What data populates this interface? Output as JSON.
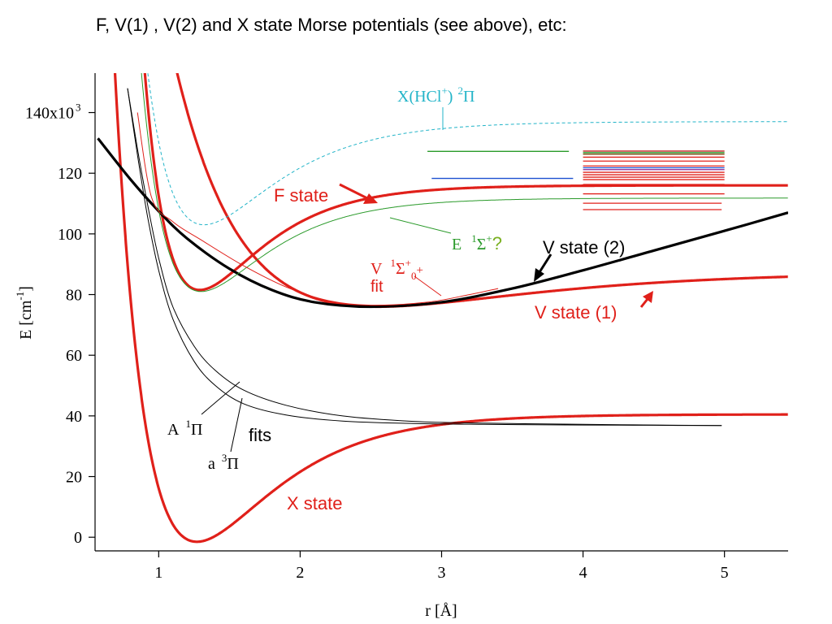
{
  "page_title": "F, V(1) , V(2) and X state Morse potentials (see above), etc:",
  "chart_data": {
    "type": "line",
    "xlabel": "r [Å]",
    "ylabel": "E [cm-1]",
    "xlim": [
      0.55,
      5.45
    ],
    "ylim": [
      -4500,
      153000
    ],
    "x_ticks": [
      "1",
      "2",
      "3",
      "4",
      "5"
    ],
    "y_ticks": [
      "0",
      "20",
      "40",
      "60",
      "80",
      "100",
      "120",
      "140x10"
    ],
    "y_tick_sup": "3",
    "grid": false,
    "series": [
      {
        "id": "X_state",
        "label": "X state",
        "curve": "morse",
        "params": {
          "De": 42000,
          "re": 1.27,
          "a": 1.85,
          "Emin": -1500
        },
        "color": "#e0201a"
      },
      {
        "id": "F_state",
        "label": "F state",
        "curve": "morse",
        "params": {
          "De": 34500,
          "re": 1.29,
          "a": 2.3,
          "Emin": 81500
        },
        "color": "#e0201a"
      },
      {
        "id": "V_state_1",
        "label": "V state (1)",
        "curve": "morse",
        "params": {
          "De": 11500,
          "re": 2.55,
          "a": 0.9,
          "Emin": 76000
        },
        "color": "#e0201a"
      },
      {
        "id": "V_state_2",
        "label": "V state (2)",
        "curve": "points",
        "color": "#000000",
        "points": [
          [
            0.57,
            131500
          ],
          [
            0.8,
            118000
          ],
          [
            1.0,
            107500
          ],
          [
            1.2,
            98500
          ],
          [
            1.5,
            88500
          ],
          [
            1.8,
            81500
          ],
          [
            2.1,
            77500
          ],
          [
            2.5,
            76000
          ],
          [
            3.0,
            77500
          ],
          [
            3.5,
            82000
          ],
          [
            4.0,
            88000
          ],
          [
            4.5,
            94500
          ],
          [
            5.0,
            101000
          ],
          [
            5.45,
            107000
          ]
        ]
      },
      {
        "id": "E_state",
        "label": "E 1Σ+ ?",
        "curve": "morse",
        "params": {
          "De": 30800,
          "re": 1.3,
          "a": 2.2,
          "Emin": 81000
        },
        "color": "#2a9a2a"
      },
      {
        "id": "V_fit",
        "label": "V 1Σ+0+ fit",
        "curve": "points",
        "color": "#e0201a",
        "points": [
          [
            0.85,
            140000
          ],
          [
            0.95,
            112000
          ],
          [
            1.1,
            104000
          ],
          [
            1.3,
            98000
          ],
          [
            1.6,
            89500
          ],
          [
            1.9,
            82500
          ],
          [
            2.2,
            78000
          ],
          [
            2.5,
            76500
          ],
          [
            2.9,
            77500
          ],
          [
            3.2,
            80000
          ],
          [
            3.4,
            82000
          ]
        ]
      },
      {
        "id": "A_1Pi_fit",
        "label": "A 1Π",
        "curve": "points",
        "color": "#000000",
        "points": [
          [
            0.78,
            148000
          ],
          [
            0.85,
            128000
          ],
          [
            0.92,
            110000
          ],
          [
            1.0,
            92000
          ],
          [
            1.1,
            76000
          ],
          [
            1.25,
            63000
          ],
          [
            1.4,
            55000
          ],
          [
            1.6,
            48500
          ],
          [
            1.9,
            43500
          ],
          [
            2.3,
            40000
          ],
          [
            2.8,
            38200
          ],
          [
            3.3,
            37600
          ],
          [
            4.0,
            37200
          ],
          [
            4.5,
            37000
          ],
          [
            4.98,
            36800
          ]
        ]
      },
      {
        "id": "a_3Pi_fit",
        "label": "a 3Π",
        "curve": "points",
        "color": "#000000",
        "points": [
          [
            0.78,
            148000
          ],
          [
            0.85,
            126000
          ],
          [
            0.92,
            106000
          ],
          [
            1.0,
            88000
          ],
          [
            1.1,
            72000
          ],
          [
            1.25,
            58000
          ],
          [
            1.4,
            50000
          ],
          [
            1.6,
            44000
          ],
          [
            1.9,
            40300
          ],
          [
            2.3,
            38300
          ],
          [
            2.8,
            37500
          ],
          [
            3.3,
            37200
          ],
          [
            4.0,
            37000
          ],
          [
            4.5,
            36900
          ],
          [
            4.98,
            36800
          ]
        ]
      },
      {
        "id": "HCl_plus_X",
        "label": "X(HCl+) 2Π",
        "curve": "morse",
        "params": {
          "De": 34000,
          "re": 1.32,
          "a": 2.0,
          "Emin": 103000
        },
        "color": "#22b4c8",
        "dashed": true
      }
    ],
    "levels": [
      {
        "y": 127200,
        "x0": 2.9,
        "x1": 3.9,
        "color": "#2a9a2a"
      },
      {
        "y": 118300,
        "x0": 2.93,
        "x1": 3.93,
        "color": "#1a4fd0"
      },
      {
        "y": 127300,
        "x0": 4.0,
        "x1": 5.0,
        "color": "#c02020"
      },
      {
        "y": 126800,
        "x0": 4.0,
        "x1": 5.0,
        "color": "#2a9a2a"
      },
      {
        "y": 126300,
        "x0": 4.0,
        "x1": 5.0,
        "color": "#7a4a10"
      },
      {
        "y": 125300,
        "x0": 4.0,
        "x1": 5.0,
        "color": "#e0201a"
      },
      {
        "y": 124000,
        "x0": 4.0,
        "x1": 5.0,
        "color": "#e0201a"
      },
      {
        "y": 122400,
        "x0": 4.0,
        "x1": 5.0,
        "color": "#e0201a"
      },
      {
        "y": 121800,
        "x0": 4.0,
        "x1": 5.0,
        "color": "#1a4fd0"
      },
      {
        "y": 121200,
        "x0": 4.0,
        "x1": 5.0,
        "color": "#8a2090"
      },
      {
        "y": 120300,
        "x0": 4.0,
        "x1": 5.0,
        "color": "#e0201a"
      },
      {
        "y": 119500,
        "x0": 4.0,
        "x1": 5.0,
        "color": "#e0201a"
      },
      {
        "y": 118700,
        "x0": 4.0,
        "x1": 5.0,
        "color": "#e0201a"
      },
      {
        "y": 117900,
        "x0": 4.0,
        "x1": 5.0,
        "color": "#e0201a"
      },
      {
        "y": 116300,
        "x0": 4.0,
        "x1": 5.0,
        "color": "#e0201a"
      },
      {
        "y": 113200,
        "x0": 4.0,
        "x1": 5.0,
        "color": "#e0201a"
      },
      {
        "y": 110100,
        "x0": 4.0,
        "x1": 4.98,
        "color": "#e0201a"
      },
      {
        "y": 108000,
        "x0": 4.0,
        "x1": 4.98,
        "color": "#e0201a"
      }
    ],
    "annotations": {
      "f_state": "F state",
      "v_state_2": "V state (2)",
      "v_state_1": "V state (1)",
      "x_state": "X state",
      "e_state_prefix": "E",
      "e_state_sup1": "1",
      "e_state_sigma": "Σ",
      "e_state_sup_plus": "+",
      "e_state_question": "?",
      "v_fit_prefix": "V",
      "v_fit_sup1": "1",
      "v_fit_sigma": "Σ",
      "v_fit_sup_plus": "+",
      "v_fit_sub0": "0",
      "v_fit_plus": "+",
      "v_fit_fit": "fit",
      "hcl_text": "X(HCl",
      "hcl_sup_plus": "+",
      "hcl_close": ")",
      "hcl_sup2": "2",
      "hcl_pi": "Π",
      "a1pi_prefix": "A",
      "a1pi_sup": "1",
      "a1pi_pi": "Π",
      "a3pi_prefix": "a",
      "a3pi_sup": "3",
      "a3pi_pi": "Π",
      "fits": "fits",
      "ylabel_main": "E [cm",
      "ylabel_sup": "-1",
      "ylabel_close": "]"
    }
  }
}
